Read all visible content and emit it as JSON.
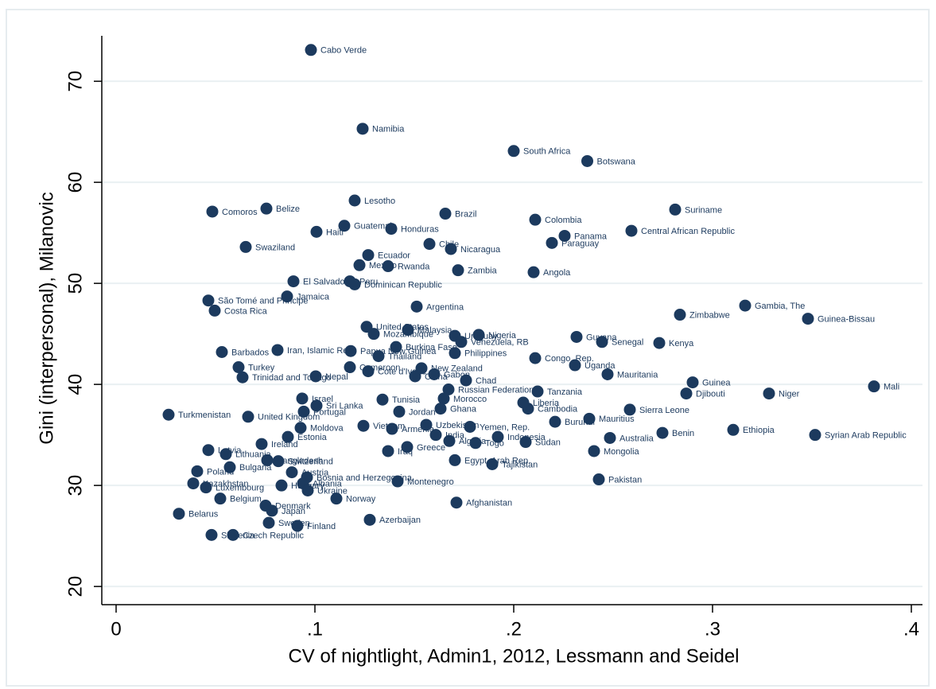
{
  "chart_data": {
    "type": "scatter",
    "xlabel": "CV of nightlight, Admin1, 2012, Lessmann and Seidel",
    "ylabel": "Gini (interpersonal), Milanovic",
    "color": "#1c3a5e",
    "grid": true,
    "xlim": [
      -0.0072,
      0.4056
    ],
    "ylim": [
      18.2,
      74.5
    ],
    "xticks": [
      0,
      {
        "value": 0.1,
        "label": ".1"
      },
      {
        "value": 0.2,
        "label": ".2"
      },
      {
        "value": 0.3,
        "label": ".3"
      },
      {
        "value": 0.4,
        "label": ".4"
      }
    ],
    "yticks": [
      20,
      30,
      40,
      50,
      60,
      70
    ],
    "labels": [
      "Cabo Verde",
      "Namibia",
      "South Africa",
      "Botswana",
      "Lesotho",
      "Comoros",
      "Belize",
      "Brazil",
      "Suriname",
      "Colombia",
      "Guatemala",
      "Honduras",
      "Haiti",
      "Central African Republic",
      "Panama",
      "Paraguay",
      "Chile",
      "Nicaragua",
      "Swaziland",
      "Ecuador",
      "Mexico",
      "Rwanda",
      "Zambia",
      "Angola",
      "El Salvador",
      "Peru",
      "Dominican Republic",
      "Jamaica",
      "São Tomé and Principe",
      "Argentina",
      "Costa Rica",
      "Gambia, The",
      "Zimbabwe",
      "Guinea-Bissau",
      "United States",
      "Malaysia",
      "Mozambique",
      "Nigeria",
      "Uruguay",
      "Venezuela, RB",
      "Guyana",
      "Senegal",
      "Kenya",
      "Burkina Faso",
      "Barbados",
      "Iran, Islamic Rep.",
      "Papua New Guinea",
      "Philippines",
      "Thailand",
      "Congo, Rep.",
      "Uganda",
      "Turkey",
      "Cameroon",
      "Cote d'Ivoire",
      "Mauritania",
      "Trinidad and Tobago",
      "Nepal",
      "Gabon",
      "Chad",
      "China",
      "Guinea",
      "Mali",
      "Djibouti",
      "Niger",
      "Tanzania",
      "New Zealand",
      "Russian Federation",
      "Morocco",
      "Israel",
      "Tunisia",
      "Sri Lanka",
      "Cambodia",
      "Liberia",
      "Portugal",
      "Jordan",
      "Ghana",
      "Sierra Leone",
      "Turkmenistan",
      "United Kingdom",
      "Burundi",
      "Mauritius",
      "Moldova",
      "Vietnam",
      "Armenia",
      "Uzbekistan",
      "Yemen, Rep.",
      "Ethiopia",
      "Benin",
      "Syrian Arab Republic",
      "Estonia",
      "India",
      "Indonesia",
      "Australia",
      "Algeria",
      "Togo",
      "Sudan",
      "Ireland",
      "Mongolia",
      "Greece",
      "Iraq",
      "Latvia",
      "Lithuania",
      "Bangladesh",
      "Switzerland",
      "Egypt, Arab Rep.",
      "Tajikistan",
      "Bulgaria",
      "Poland",
      "Austria",
      "Bosnia and Herzegovina",
      "Montenegro",
      "Pakistan",
      "Kazakhstan",
      "Albania",
      "Luxembourg",
      "Hungary",
      "Ukraine",
      "Belgium",
      "Norway",
      "Afghanistan",
      "Denmark",
      "Japan",
      "Belarus",
      "Azerbaijan",
      "Sweden",
      "Finland",
      "Slovenia",
      "Czech Republic"
    ],
    "x": [
      0.098,
      0.124,
      0.2,
      0.237,
      0.12,
      0.0484,
      0.0756,
      0.1656,
      0.2812,
      0.2108,
      0.1148,
      0.1384,
      0.1008,
      0.2592,
      0.2256,
      0.2192,
      0.1576,
      0.1684,
      0.0652,
      0.1268,
      0.1224,
      0.1368,
      0.172,
      0.21,
      0.0892,
      0.1176,
      0.12,
      0.086,
      0.0464,
      0.1512,
      0.0496,
      0.3164,
      0.2836,
      0.348,
      0.126,
      0.1468,
      0.1296,
      0.1824,
      0.1704,
      0.1736,
      0.2316,
      0.2444,
      0.2732,
      0.1408,
      0.0532,
      0.0812,
      0.118,
      0.1704,
      0.132,
      0.2108,
      0.2308,
      0.0616,
      0.1176,
      0.1268,
      0.2472,
      0.0636,
      0.1004,
      0.16,
      0.176,
      0.1504,
      0.29,
      0.3812,
      0.2868,
      0.3284,
      0.212,
      0.1536,
      0.1672,
      0.1648,
      0.0936,
      0.134,
      0.1008,
      0.2072,
      0.2048,
      0.0944,
      0.1424,
      0.1632,
      0.2584,
      0.0264,
      0.0664,
      0.2208,
      0.238,
      0.0928,
      0.1244,
      0.1388,
      0.156,
      0.178,
      0.3104,
      0.2748,
      0.3516,
      0.0864,
      0.1608,
      0.192,
      0.2484,
      0.1676,
      0.1808,
      0.206,
      0.0732,
      0.2404,
      0.1464,
      0.1368,
      0.0464,
      0.0552,
      0.076,
      0.0816,
      0.1704,
      0.1892,
      0.0572,
      0.0408,
      0.0884,
      0.096,
      0.1416,
      0.2428,
      0.0388,
      0.094,
      0.0452,
      0.0832,
      0.0964,
      0.0524,
      0.1108,
      0.1712,
      0.0752,
      0.0784,
      0.0316,
      0.1276,
      0.0768,
      0.0912,
      0.048,
      0.0588
    ],
    "values": [
      73.1,
      65.3,
      63.1,
      62.1,
      58.2,
      57.1,
      57.4,
      56.9,
      57.3,
      56.3,
      55.7,
      55.4,
      55.1,
      55.2,
      54.7,
      54.0,
      53.9,
      53.4,
      53.6,
      52.8,
      51.8,
      51.7,
      51.3,
      51.1,
      50.2,
      50.2,
      49.9,
      48.7,
      48.3,
      47.7,
      47.3,
      47.8,
      46.9,
      46.5,
      45.7,
      45.4,
      45.0,
      44.9,
      44.8,
      44.2,
      44.7,
      44.2,
      44.1,
      43.7,
      43.2,
      43.4,
      43.3,
      43.1,
      42.8,
      42.6,
      41.9,
      41.7,
      41.7,
      41.3,
      41.0,
      40.7,
      40.8,
      41.0,
      40.4,
      40.8,
      40.2,
      39.8,
      39.1,
      39.1,
      39.3,
      41.6,
      39.5,
      38.6,
      38.6,
      38.5,
      37.9,
      37.6,
      38.2,
      37.3,
      37.3,
      37.6,
      37.5,
      37.0,
      36.8,
      36.3,
      36.6,
      35.7,
      35.9,
      35.6,
      36.0,
      35.8,
      35.5,
      35.2,
      35.0,
      34.8,
      35.0,
      34.8,
      34.7,
      34.4,
      34.2,
      34.3,
      34.1,
      33.4,
      33.8,
      33.4,
      33.5,
      33.1,
      32.5,
      32.4,
      32.5,
      32.1,
      31.8,
      31.4,
      31.3,
      30.8,
      30.4,
      30.6,
      30.2,
      30.2,
      29.8,
      30.0,
      29.5,
      28.7,
      28.7,
      28.3,
      28.0,
      27.5,
      27.2,
      26.6,
      26.3,
      26.0,
      25.1,
      25.1
    ]
  }
}
